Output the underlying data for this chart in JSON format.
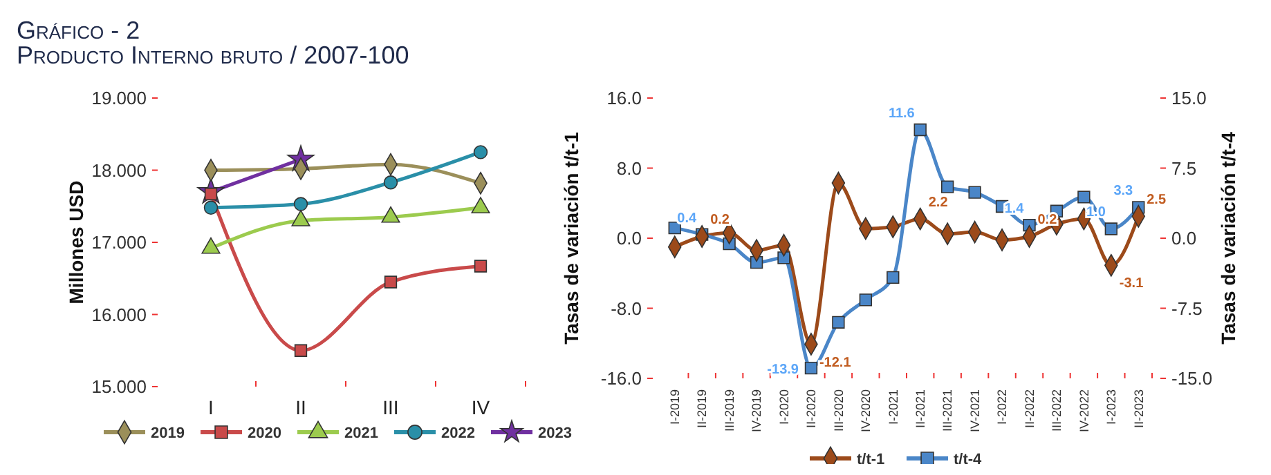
{
  "chart_data": [
    {
      "type": "line",
      "title": "Gráfico - 2",
      "subtitle": "Producto Interno bruto / 2007-100",
      "ylabel": "Millones USD",
      "categories": [
        "I",
        "II",
        "III",
        "IV"
      ],
      "ylim": [
        15,
        19
      ],
      "yticks": [
        {
          "value": 15,
          "label": "15.000"
        },
        {
          "value": 16,
          "label": "16.000"
        },
        {
          "value": 17,
          "label": "17.000"
        },
        {
          "value": 18,
          "label": "18.000"
        },
        {
          "value": 19,
          "label": "19.000"
        }
      ],
      "grid": false,
      "legend": "bottom",
      "series": [
        {
          "name": "2019",
          "color": "#9b8f5a",
          "marker": "diamond",
          "values": [
            18.0,
            18.02,
            18.08,
            17.82
          ]
        },
        {
          "name": "2020",
          "color": "#c94a4a",
          "marker": "square",
          "values": [
            17.67,
            15.5,
            16.45,
            16.67
          ]
        },
        {
          "name": "2021",
          "color": "#9ccb4e",
          "marker": "triangle",
          "values": [
            16.92,
            17.3,
            17.35,
            17.48
          ]
        },
        {
          "name": "2022",
          "color": "#2a8fa8",
          "marker": "circle",
          "values": [
            17.48,
            17.53,
            17.83,
            18.25
          ]
        },
        {
          "name": "2023",
          "color": "#7030a0",
          "marker": "star",
          "values": [
            17.7,
            18.15,
            null,
            null
          ]
        }
      ]
    },
    {
      "type": "line",
      "ylabel": "Tasas de variación t/t-1",
      "y2label": "Tasas de variación t/t-4",
      "categories": [
        "I-2019",
        "II-2019",
        "III-2019",
        "IV-2019",
        "I-2020",
        "II-2020",
        "III-2020",
        "IV-2020",
        "I-2021",
        "II-2021",
        "III-2021",
        "IV-2021",
        "I-2022",
        "II-2022",
        "III-2022",
        "IV-2022",
        "I-2023",
        "II-2023"
      ],
      "ylim": [
        -16,
        16
      ],
      "yticks": [
        {
          "value": -16,
          "label": "-16.0"
        },
        {
          "value": -8,
          "label": "-8.0"
        },
        {
          "value": 0,
          "label": "0.0"
        },
        {
          "value": 8,
          "label": "8.0"
        },
        {
          "value": 16,
          "label": "16.0"
        }
      ],
      "y2lim": [
        -15,
        15
      ],
      "y2ticks": [
        {
          "value": -15,
          "label": "-15.0"
        },
        {
          "value": -7.5,
          "label": "-7.5"
        },
        {
          "value": 0,
          "label": "0.0"
        },
        {
          "value": 7.5,
          "label": "7.5"
        },
        {
          "value": 15,
          "label": "15.0"
        }
      ],
      "grid": false,
      "legend": "bottom",
      "series": [
        {
          "name": "t/t-1",
          "color": "#9c4a1a",
          "marker": "diamond",
          "values": [
            -1.0,
            0.2,
            0.6,
            -1.4,
            -0.8,
            -12.1,
            6.3,
            1.1,
            1.3,
            2.2,
            0.5,
            0.7,
            -0.2,
            0.2,
            1.6,
            2.2,
            -3.1,
            2.5
          ],
          "value_labels": [
            null,
            "0.2",
            null,
            null,
            null,
            "-12.1",
            null,
            null,
            null,
            "2.2",
            null,
            null,
            null,
            "0.2",
            null,
            null,
            "-3.1",
            "2.5"
          ]
        },
        {
          "name": "t/t-4",
          "color": "#4a86c8",
          "marker": "square",
          "axis": "y2",
          "values": [
            1.1,
            0.4,
            -0.6,
            -2.6,
            -2.1,
            -13.9,
            -9.0,
            -6.6,
            -4.2,
            11.6,
            5.5,
            4.9,
            3.4,
            1.4,
            2.9,
            4.4,
            1.0,
            3.3
          ],
          "value_labels": [
            null,
            "0.4",
            null,
            null,
            null,
            "-13.9",
            null,
            null,
            null,
            "11.6",
            null,
            null,
            null,
            "1.4",
            null,
            null,
            "1.0",
            "3.3"
          ]
        }
      ]
    }
  ]
}
